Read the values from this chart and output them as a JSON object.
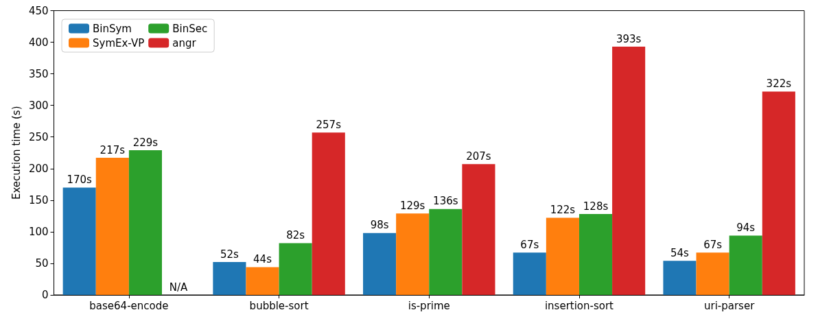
{
  "chart_data": {
    "type": "bar",
    "ylabel": "Execution time (s)",
    "categories": [
      "base64-encode",
      "bubble-sort",
      "is-prime",
      "insertion-sort",
      "uri-parser"
    ],
    "series": [
      {
        "name": "BinSym",
        "color": "#1f77b4",
        "values": [
          170,
          52,
          98,
          67,
          54
        ],
        "value_labels": [
          "170s",
          "52s",
          "98s",
          "67s",
          "54s"
        ]
      },
      {
        "name": "SymEx-VP",
        "color": "#ff7f0e",
        "values": [
          217,
          44,
          129,
          122,
          67
        ],
        "value_labels": [
          "217s",
          "44s",
          "129s",
          "122s",
          "67s"
        ]
      },
      {
        "name": "BinSec",
        "color": "#2ca02c",
        "values": [
          229,
          82,
          136,
          128,
          94
        ],
        "value_labels": [
          "229s",
          "82s",
          "136s",
          "128s",
          "94s"
        ]
      },
      {
        "name": "angr",
        "color": "#d62728",
        "values": [
          null,
          257,
          207,
          393,
          322
        ],
        "value_labels": [
          "N/A",
          "257s",
          "207s",
          "393s",
          "322s"
        ]
      }
    ],
    "ylim": [
      0,
      450
    ],
    "yticks": [
      0,
      50,
      100,
      150,
      200,
      250,
      300,
      350,
      400,
      450
    ],
    "grid": false,
    "legend": "top left"
  }
}
